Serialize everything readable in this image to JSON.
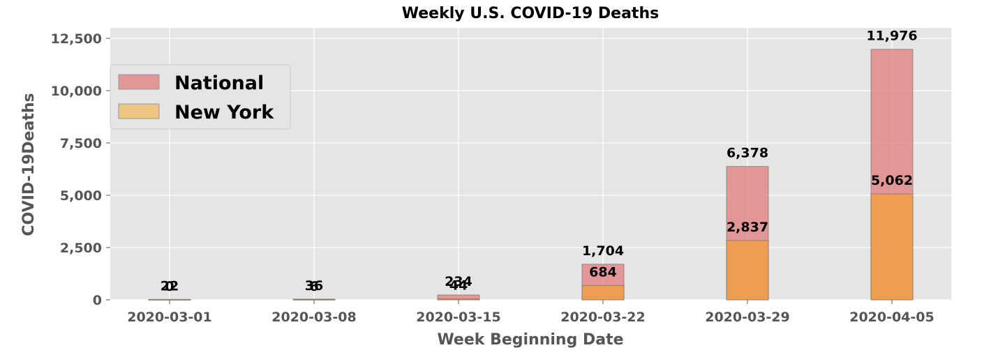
{
  "chart_data": {
    "type": "bar",
    "title": "Weekly U.S. COVID-19 Deaths",
    "xlabel": "Week Beginning Date",
    "ylabel": "COVID-19Deaths",
    "categories": [
      "2020-03-01",
      "2020-03-08",
      "2020-03-15",
      "2020-03-22",
      "2020-03-29",
      "2020-04-05"
    ],
    "series": [
      {
        "name": "National",
        "values": [
          22,
          36,
          234,
          1704,
          6378,
          11976
        ],
        "labels": [
          "22",
          "36",
          "234",
          "1,704",
          "6,378",
          "11,976"
        ],
        "color": "#e07b7b"
      },
      {
        "name": "New York",
        "values": [
          0,
          6,
          44,
          684,
          2837,
          5062
        ],
        "labels": [
          "0",
          "6",
          "44",
          "684",
          "2,837",
          "5,062"
        ],
        "color": "#f0a040"
      }
    ],
    "ylim": [
      0,
      13000
    ],
    "yticks": [
      0,
      2500,
      5000,
      7500,
      10000,
      12500
    ],
    "ytick_labels": [
      "0",
      "2,500",
      "5,000",
      "7,500",
      "10,000",
      "12,500"
    ],
    "grid": true,
    "legend": "upper-left",
    "colors": {
      "background": "#e5e5e5",
      "grid": "#ffffff"
    }
  }
}
